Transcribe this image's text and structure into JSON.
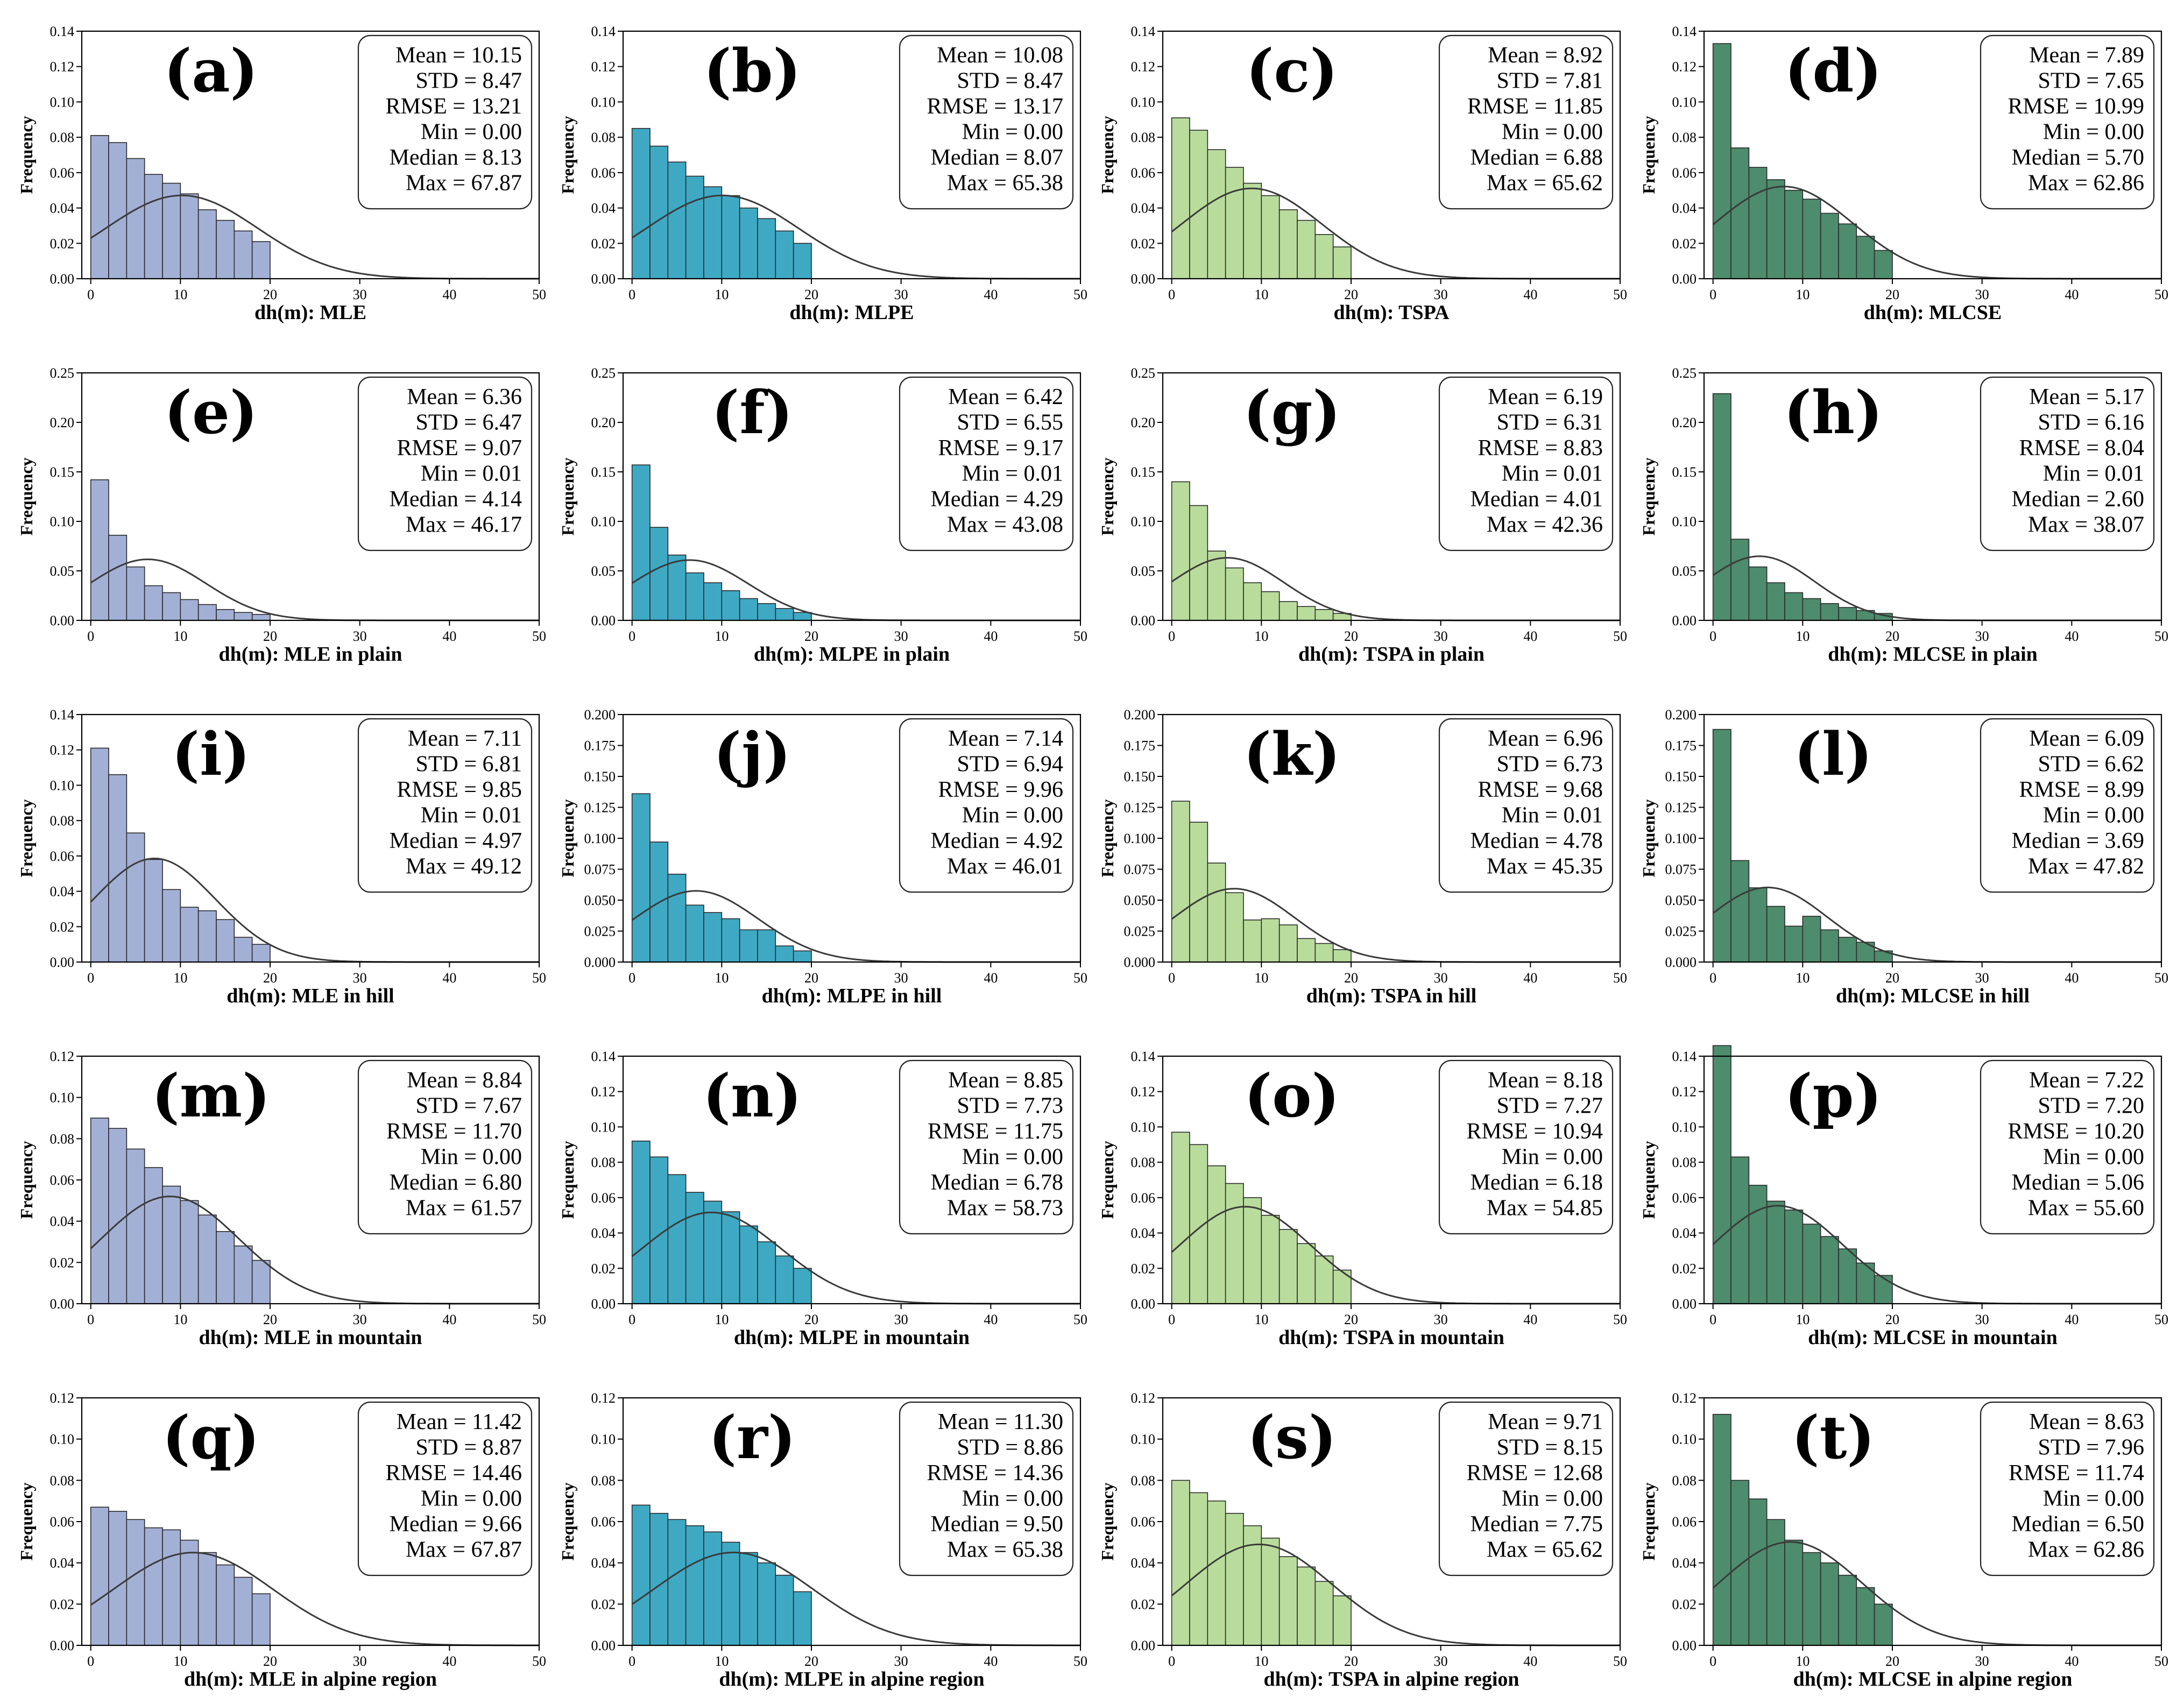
{
  "chart_data": [
    {
      "type": "bar",
      "letter": "(a)",
      "xlabel": "dh(m): MLE",
      "ylabel": "Frequency",
      "color": "#a3b0d6",
      "ylim": [
        0,
        0.14
      ],
      "yticks": [
        "0.00",
        "0.02",
        "0.04",
        "0.06",
        "0.08",
        "0.10",
        "0.12",
        "0.14"
      ],
      "xlim": [
        -1,
        50
      ],
      "xticks": [
        "0",
        "10",
        "20",
        "30",
        "40",
        "50"
      ],
      "values": [
        0.081,
        0.077,
        0.068,
        0.059,
        0.054,
        0.048,
        0.039,
        0.033,
        0.027,
        0.021
      ],
      "normal": {
        "mean": 10.15,
        "std": 8.47
      },
      "stats": [
        "Mean = 10.15",
        "STD = 8.47",
        "RMSE = 13.21",
        "Min = 0.00",
        "Median = 8.13",
        "Max = 67.87"
      ]
    },
    {
      "type": "bar",
      "letter": "(b)",
      "xlabel": "dh(m): MLPE",
      "ylabel": "Frequency",
      "color": "#3fa9c4",
      "ylim": [
        0,
        0.14
      ],
      "yticks": [
        "0.00",
        "0.02",
        "0.04",
        "0.06",
        "0.08",
        "0.10",
        "0.12",
        "0.14"
      ],
      "xlim": [
        -1,
        50
      ],
      "xticks": [
        "0",
        "10",
        "20",
        "30",
        "40",
        "50"
      ],
      "values": [
        0.085,
        0.075,
        0.066,
        0.058,
        0.052,
        0.047,
        0.04,
        0.034,
        0.027,
        0.02
      ],
      "normal": {
        "mean": 10.08,
        "std": 8.47
      },
      "stats": [
        "Mean = 10.08",
        "STD = 8.47",
        "RMSE = 13.17",
        "Min = 0.00",
        "Median = 8.07",
        "Max = 65.38"
      ]
    },
    {
      "type": "bar",
      "letter": "(c)",
      "xlabel": "dh(m): TSPA",
      "ylabel": "Frequency",
      "color": "#b9dc9c",
      "ylim": [
        0,
        0.14
      ],
      "yticks": [
        "0.00",
        "0.02",
        "0.04",
        "0.06",
        "0.08",
        "0.10",
        "0.12",
        "0.14"
      ],
      "xlim": [
        -1,
        50
      ],
      "xticks": [
        "0",
        "10",
        "20",
        "30",
        "40",
        "50"
      ],
      "values": [
        0.091,
        0.084,
        0.073,
        0.063,
        0.054,
        0.047,
        0.039,
        0.033,
        0.025,
        0.018
      ],
      "normal": {
        "mean": 8.92,
        "std": 7.81
      },
      "stats": [
        "Mean = 8.92",
        "STD = 7.81",
        "RMSE = 11.85",
        "Min = 0.00",
        "Median = 6.88",
        "Max = 65.62"
      ]
    },
    {
      "type": "bar",
      "letter": "(d)",
      "xlabel": "dh(m): MLCSE",
      "ylabel": "Frequency",
      "color": "#4d8c6c",
      "ylim": [
        0,
        0.14
      ],
      "yticks": [
        "0.00",
        "0.02",
        "0.04",
        "0.06",
        "0.08",
        "0.10",
        "0.12",
        "0.14"
      ],
      "xlim": [
        -1,
        50
      ],
      "xticks": [
        "0",
        "10",
        "20",
        "30",
        "40",
        "50"
      ],
      "values": [
        0.133,
        0.074,
        0.063,
        0.056,
        0.05,
        0.045,
        0.037,
        0.031,
        0.024,
        0.016
      ],
      "normal": {
        "mean": 7.89,
        "std": 7.65
      },
      "stats": [
        "Mean = 7.89",
        "STD = 7.65",
        "RMSE = 10.99",
        "Min = 0.00",
        "Median = 5.70",
        "Max = 62.86"
      ]
    },
    {
      "type": "bar",
      "letter": "(e)",
      "xlabel": "dh(m): MLE in plain",
      "ylabel": "Frequency",
      "color": "#a3b0d6",
      "ylim": [
        0,
        0.25
      ],
      "yticks": [
        "0.00",
        "0.05",
        "0.10",
        "0.15",
        "0.20",
        "0.25"
      ],
      "xlim": [
        -1,
        50
      ],
      "xticks": [
        "0",
        "10",
        "20",
        "30",
        "40",
        "50"
      ],
      "values": [
        0.142,
        0.086,
        0.054,
        0.035,
        0.028,
        0.021,
        0.016,
        0.011,
        0.008,
        0.006
      ],
      "normal": {
        "mean": 6.36,
        "std": 6.47
      },
      "stats": [
        "Mean = 6.36",
        "STD = 6.47",
        "RMSE = 9.07",
        "Min = 0.01",
        "Median = 4.14",
        "Max = 46.17"
      ]
    },
    {
      "type": "bar",
      "letter": "(f)",
      "xlabel": "dh(m): MLPE in plain",
      "ylabel": "Frequency",
      "color": "#3fa9c4",
      "ylim": [
        0,
        0.25
      ],
      "yticks": [
        "0.00",
        "0.05",
        "0.10",
        "0.15",
        "0.20",
        "0.25"
      ],
      "xlim": [
        -1,
        50
      ],
      "xticks": [
        "0",
        "10",
        "20",
        "30",
        "40",
        "50"
      ],
      "values": [
        0.157,
        0.094,
        0.066,
        0.048,
        0.038,
        0.03,
        0.022,
        0.017,
        0.012,
        0.008
      ],
      "normal": {
        "mean": 6.42,
        "std": 6.55
      },
      "stats": [
        "Mean = 6.42",
        "STD = 6.55",
        "RMSE = 9.17",
        "Min = 0.01",
        "Median = 4.29",
        "Max = 43.08"
      ]
    },
    {
      "type": "bar",
      "letter": "(g)",
      "xlabel": "dh(m): TSPA in plain",
      "ylabel": "Frequency",
      "color": "#b9dc9c",
      "ylim": [
        0,
        0.25
      ],
      "yticks": [
        "0.00",
        "0.05",
        "0.10",
        "0.15",
        "0.20",
        "0.25"
      ],
      "xlim": [
        -1,
        50
      ],
      "xticks": [
        "0",
        "10",
        "20",
        "30",
        "40",
        "50"
      ],
      "values": [
        0.14,
        0.116,
        0.07,
        0.053,
        0.038,
        0.029,
        0.019,
        0.014,
        0.011,
        0.007
      ],
      "normal": {
        "mean": 6.19,
        "std": 6.31
      },
      "stats": [
        "Mean = 6.19",
        "STD = 6.31",
        "RMSE = 8.83",
        "Min = 0.01",
        "Median = 4.01",
        "Max = 42.36"
      ]
    },
    {
      "type": "bar",
      "letter": "(h)",
      "xlabel": "dh(m): MLCSE in plain",
      "ylabel": "Frequency",
      "color": "#4d8c6c",
      "ylim": [
        0,
        0.25
      ],
      "yticks": [
        "0.00",
        "0.05",
        "0.10",
        "0.15",
        "0.20",
        "0.25"
      ],
      "xlim": [
        -1,
        50
      ],
      "xticks": [
        "0",
        "10",
        "20",
        "30",
        "40",
        "50"
      ],
      "values": [
        0.229,
        0.082,
        0.054,
        0.038,
        0.028,
        0.022,
        0.017,
        0.013,
        0.01,
        0.007
      ],
      "normal": {
        "mean": 5.17,
        "std": 6.16
      },
      "stats": [
        "Mean = 5.17",
        "STD = 6.16",
        "RMSE = 8.04",
        "Min = 0.01",
        "Median = 2.60",
        "Max = 38.07"
      ]
    },
    {
      "type": "bar",
      "letter": "(i)",
      "xlabel": "dh(m): MLE in hill",
      "ylabel": "Frequency",
      "color": "#a3b0d6",
      "ylim": [
        0,
        0.14
      ],
      "yticks": [
        "0.00",
        "0.02",
        "0.04",
        "0.06",
        "0.08",
        "0.10",
        "0.12",
        "0.14"
      ],
      "xlim": [
        -1,
        50
      ],
      "xticks": [
        "0",
        "10",
        "20",
        "30",
        "40",
        "50"
      ],
      "values": [
        0.121,
        0.106,
        0.073,
        0.058,
        0.041,
        0.031,
        0.029,
        0.024,
        0.014,
        0.01
      ],
      "normal": {
        "mean": 7.11,
        "std": 6.81
      },
      "stats": [
        "Mean = 7.11",
        "STD = 6.81",
        "RMSE = 9.85",
        "Min = 0.01",
        "Median = 4.97",
        "Max = 49.12"
      ]
    },
    {
      "type": "bar",
      "letter": "(j)",
      "xlabel": "dh(m): MLPE in hill",
      "ylabel": "Frequency",
      "color": "#3fa9c4",
      "ylim": [
        0,
        0.2
      ],
      "yticks": [
        "0.000",
        "0.025",
        "0.050",
        "0.075",
        "0.100",
        "0.125",
        "0.150",
        "0.175",
        "0.200"
      ],
      "xlim": [
        -1,
        50
      ],
      "xticks": [
        "0",
        "10",
        "20",
        "30",
        "40",
        "50"
      ],
      "values": [
        0.136,
        0.097,
        0.071,
        0.046,
        0.04,
        0.035,
        0.026,
        0.026,
        0.013,
        0.009
      ],
      "normal": {
        "mean": 7.14,
        "std": 6.94
      },
      "stats": [
        "Mean = 7.14",
        "STD = 6.94",
        "RMSE = 9.96",
        "Min = 0.00",
        "Median = 4.92",
        "Max = 46.01"
      ]
    },
    {
      "type": "bar",
      "letter": "(k)",
      "xlabel": "dh(m): TSPA in hill",
      "ylabel": "Frequency",
      "color": "#b9dc9c",
      "ylim": [
        0,
        0.2
      ],
      "yticks": [
        "0.000",
        "0.025",
        "0.050",
        "0.075",
        "0.100",
        "0.125",
        "0.150",
        "0.175",
        "0.200"
      ],
      "xlim": [
        -1,
        50
      ],
      "xticks": [
        "0",
        "10",
        "20",
        "30",
        "40",
        "50"
      ],
      "values": [
        0.13,
        0.113,
        0.08,
        0.056,
        0.034,
        0.035,
        0.03,
        0.019,
        0.015,
        0.01
      ],
      "normal": {
        "mean": 6.96,
        "std": 6.73
      },
      "stats": [
        "Mean = 6.96",
        "STD = 6.73",
        "RMSE = 9.68",
        "Min = 0.01",
        "Median = 4.78",
        "Max = 45.35"
      ]
    },
    {
      "type": "bar",
      "letter": "(l)",
      "xlabel": "dh(m): MLCSE in hill",
      "ylabel": "Frequency",
      "color": "#4d8c6c",
      "ylim": [
        0,
        0.2
      ],
      "yticks": [
        "0.000",
        "0.025",
        "0.050",
        "0.075",
        "0.100",
        "0.125",
        "0.150",
        "0.175",
        "0.200"
      ],
      "xlim": [
        -1,
        50
      ],
      "xticks": [
        "0",
        "10",
        "20",
        "30",
        "40",
        "50"
      ],
      "values": [
        0.188,
        0.082,
        0.06,
        0.045,
        0.029,
        0.037,
        0.026,
        0.02,
        0.016,
        0.009
      ],
      "normal": {
        "mean": 6.09,
        "std": 6.62
      },
      "stats": [
        "Mean = 6.09",
        "STD = 6.62",
        "RMSE = 8.99",
        "Min = 0.00",
        "Median = 3.69",
        "Max = 47.82"
      ]
    },
    {
      "type": "bar",
      "letter": "(m)",
      "xlabel": "dh(m): MLE in mountain",
      "ylabel": "Frequency",
      "color": "#a3b0d6",
      "ylim": [
        0,
        0.12
      ],
      "yticks": [
        "0.00",
        "0.02",
        "0.04",
        "0.06",
        "0.08",
        "0.10",
        "0.12"
      ],
      "xlim": [
        -1,
        50
      ],
      "xticks": [
        "0",
        "10",
        "20",
        "30",
        "40",
        "50"
      ],
      "values": [
        0.09,
        0.085,
        0.075,
        0.066,
        0.057,
        0.05,
        0.043,
        0.035,
        0.028,
        0.021
      ],
      "normal": {
        "mean": 8.84,
        "std": 7.67
      },
      "stats": [
        "Mean = 8.84",
        "STD = 7.67",
        "RMSE = 11.70",
        "Min = 0.00",
        "Median = 6.80",
        "Max = 61.57"
      ]
    },
    {
      "type": "bar",
      "letter": "(n)",
      "xlabel": "dh(m): MLPE in mountain",
      "ylabel": "Frequency",
      "color": "#3fa9c4",
      "ylim": [
        0,
        0.14
      ],
      "yticks": [
        "0.00",
        "0.02",
        "0.04",
        "0.06",
        "0.08",
        "0.10",
        "0.12",
        "0.14"
      ],
      "xlim": [
        -1,
        50
      ],
      "xticks": [
        "0",
        "10",
        "20",
        "30",
        "40",
        "50"
      ],
      "values": [
        0.092,
        0.083,
        0.073,
        0.063,
        0.058,
        0.052,
        0.044,
        0.035,
        0.027,
        0.02
      ],
      "normal": {
        "mean": 8.85,
        "std": 7.73
      },
      "stats": [
        "Mean = 8.85",
        "STD = 7.73",
        "RMSE = 11.75",
        "Min = 0.00",
        "Median = 6.78",
        "Max = 58.73"
      ]
    },
    {
      "type": "bar",
      "letter": "(o)",
      "xlabel": "dh(m): TSPA in mountain",
      "ylabel": "Frequency",
      "color": "#b9dc9c",
      "ylim": [
        0,
        0.14
      ],
      "yticks": [
        "0.00",
        "0.02",
        "0.04",
        "0.06",
        "0.08",
        "0.10",
        "0.12",
        "0.14"
      ],
      "xlim": [
        -1,
        50
      ],
      "xticks": [
        "0",
        "10",
        "20",
        "30",
        "40",
        "50"
      ],
      "values": [
        0.097,
        0.09,
        0.078,
        0.068,
        0.06,
        0.05,
        0.042,
        0.034,
        0.027,
        0.019
      ],
      "normal": {
        "mean": 8.18,
        "std": 7.27
      },
      "stats": [
        "Mean = 8.18",
        "STD = 7.27",
        "RMSE = 10.94",
        "Min = 0.00",
        "Median = 6.18",
        "Max = 54.85"
      ]
    },
    {
      "type": "bar",
      "letter": "(p)",
      "xlabel": "dh(m): MLCSE in mountain",
      "ylabel": "Frequency",
      "color": "#4d8c6c",
      "ylim": [
        0,
        0.14
      ],
      "yticks": [
        "0.00",
        "0.02",
        "0.04",
        "0.06",
        "0.08",
        "0.10",
        "0.12",
        "0.14"
      ],
      "xlim": [
        -1,
        50
      ],
      "xticks": [
        "0",
        "10",
        "20",
        "30",
        "40",
        "50"
      ],
      "values": [
        0.146,
        0.083,
        0.067,
        0.058,
        0.053,
        0.045,
        0.038,
        0.031,
        0.023,
        0.016
      ],
      "normal": {
        "mean": 7.22,
        "std": 7.2
      },
      "stats": [
        "Mean = 7.22",
        "STD = 7.20",
        "RMSE = 10.20",
        "Min = 0.00",
        "Median = 5.06",
        "Max = 55.60"
      ]
    },
    {
      "type": "bar",
      "letter": "(q)",
      "xlabel": "dh(m): MLE in alpine region",
      "ylabel": "Frequency",
      "color": "#a3b0d6",
      "ylim": [
        0,
        0.12
      ],
      "yticks": [
        "0.00",
        "0.02",
        "0.04",
        "0.06",
        "0.08",
        "0.10",
        "0.12"
      ],
      "xlim": [
        -1,
        50
      ],
      "xticks": [
        "0",
        "10",
        "20",
        "30",
        "40",
        "50"
      ],
      "values": [
        0.067,
        0.065,
        0.061,
        0.057,
        0.056,
        0.051,
        0.045,
        0.039,
        0.033,
        0.025
      ],
      "normal": {
        "mean": 11.42,
        "std": 8.87
      },
      "stats": [
        "Mean = 11.42",
        "STD = 8.87",
        "RMSE = 14.46",
        "Min = 0.00",
        "Median = 9.66",
        "Max = 67.87"
      ]
    },
    {
      "type": "bar",
      "letter": "(r)",
      "xlabel": "dh(m): MLPE in alpine region",
      "ylabel": "Frequency",
      "color": "#3fa9c4",
      "ylim": [
        0,
        0.12
      ],
      "yticks": [
        "0.00",
        "0.02",
        "0.04",
        "0.06",
        "0.08",
        "0.10",
        "0.12"
      ],
      "xlim": [
        -1,
        50
      ],
      "xticks": [
        "0",
        "10",
        "20",
        "30",
        "40",
        "50"
      ],
      "values": [
        0.068,
        0.064,
        0.061,
        0.058,
        0.055,
        0.05,
        0.045,
        0.04,
        0.034,
        0.026
      ],
      "normal": {
        "mean": 11.3,
        "std": 8.86
      },
      "stats": [
        "Mean = 11.30",
        "STD = 8.86",
        "RMSE = 14.36",
        "Min = 0.00",
        "Median = 9.50",
        "Max = 65.38"
      ]
    },
    {
      "type": "bar",
      "letter": "(s)",
      "xlabel": "dh(m): TSPA in alpine region",
      "ylabel": "Frequency",
      "color": "#b9dc9c",
      "ylim": [
        0,
        0.12
      ],
      "yticks": [
        "0.00",
        "0.02",
        "0.04",
        "0.06",
        "0.08",
        "0.10",
        "0.12"
      ],
      "xlim": [
        -1,
        50
      ],
      "xticks": [
        "0",
        "10",
        "20",
        "30",
        "40",
        "50"
      ],
      "values": [
        0.08,
        0.074,
        0.07,
        0.064,
        0.058,
        0.052,
        0.043,
        0.038,
        0.031,
        0.024
      ],
      "normal": {
        "mean": 9.71,
        "std": 8.15
      },
      "stats": [
        "Mean = 9.71",
        "STD = 8.15",
        "RMSE = 12.68",
        "Min = 0.00",
        "Median = 7.75",
        "Max = 65.62"
      ]
    },
    {
      "type": "bar",
      "letter": "(t)",
      "xlabel": "dh(m): MLCSE in alpine region",
      "ylabel": "Frequency",
      "color": "#4d8c6c",
      "ylim": [
        0,
        0.12
      ],
      "yticks": [
        "0.00",
        "0.02",
        "0.04",
        "0.06",
        "0.08",
        "0.10",
        "0.12"
      ],
      "xlim": [
        -1,
        50
      ],
      "xticks": [
        "0",
        "10",
        "20",
        "30",
        "40",
        "50"
      ],
      "values": [
        0.112,
        0.08,
        0.071,
        0.061,
        0.051,
        0.045,
        0.04,
        0.034,
        0.028,
        0.02
      ],
      "normal": {
        "mean": 8.63,
        "std": 7.96
      },
      "stats": [
        "Mean = 8.63",
        "STD = 7.96",
        "RMSE = 11.74",
        "Min = 0.00",
        "Median = 6.50",
        "Max = 62.86"
      ]
    }
  ]
}
